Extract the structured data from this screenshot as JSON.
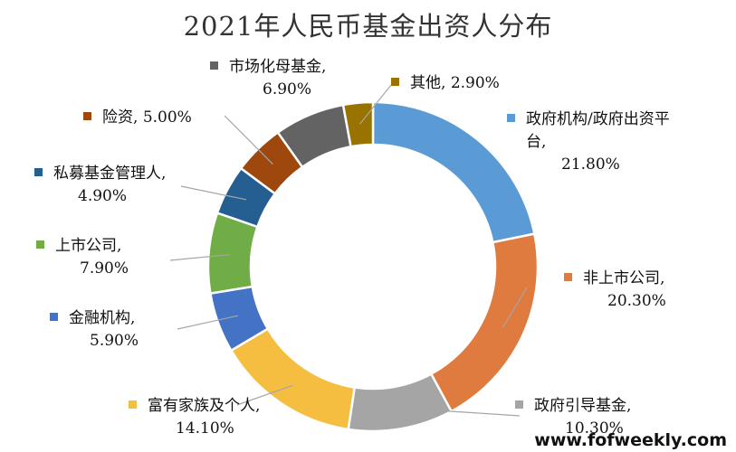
{
  "chart_data": {
    "type": "pie",
    "title": "2021年人民币基金出资人分布",
    "donut": true,
    "legend": "none",
    "slices": [
      {
        "name": "政府机构/政府出资平台",
        "value": 21.8,
        "label": "21.80%",
        "color": "#5b9bd5"
      },
      {
        "name": "非上市公司",
        "value": 20.3,
        "label": "20.30%",
        "color": "#e07b3f"
      },
      {
        "name": "政府引导基金",
        "value": 10.3,
        "label": "10.30%",
        "color": "#a5a5a5"
      },
      {
        "name": "富有家族及个人",
        "value": 14.1,
        "label": "14.10%",
        "color": "#f5be41"
      },
      {
        "name": "金融机构",
        "value": 5.9,
        "label": "5.90%",
        "color": "#4472c4"
      },
      {
        "name": "上市公司",
        "value": 7.9,
        "label": "7.90%",
        "color": "#70ad47"
      },
      {
        "name": "私募基金管理人",
        "value": 4.9,
        "label": "4.90%",
        "color": "#255e91"
      },
      {
        "name": "险资",
        "value": 5.0,
        "label": "5.00%",
        "color": "#9e480e"
      },
      {
        "name": "市场化母基金",
        "value": 6.9,
        "label": "6.90%",
        "color": "#636363"
      },
      {
        "name": "其他",
        "value": 2.9,
        "label": "2.90%",
        "color": "#997300"
      }
    ]
  },
  "watermark": "www.fofweekly.com"
}
